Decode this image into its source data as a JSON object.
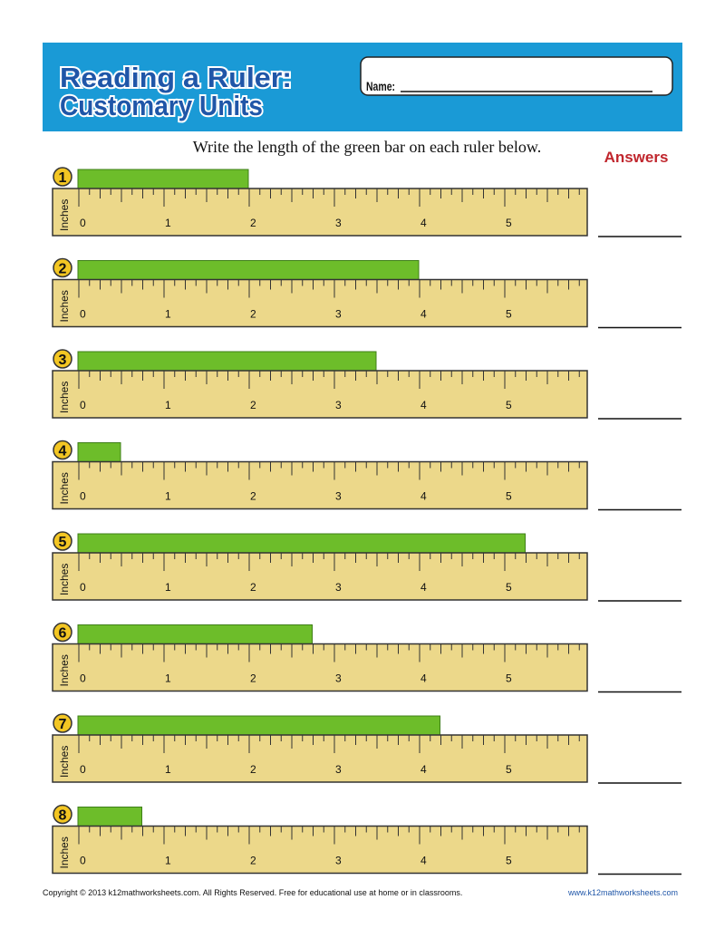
{
  "header": {
    "title_line1": "Reading a Ruler:",
    "title_line2": "Customary Units",
    "name_label": "Name:"
  },
  "instructions": "Write the length of the green bar on each ruler below.",
  "answers_label": "Answers",
  "ruler": {
    "unit_label": "Inches",
    "labels": [
      0,
      1,
      2,
      3,
      4,
      5
    ]
  },
  "problems": [
    {
      "number": 1,
      "bar_length": 2
    },
    {
      "number": 2,
      "bar_length": 4
    },
    {
      "number": 3,
      "bar_length": 3.5
    },
    {
      "number": 4,
      "bar_length": 0.5
    },
    {
      "number": 5,
      "bar_length": 5.25
    },
    {
      "number": 6,
      "bar_length": 2.75
    },
    {
      "number": 7,
      "bar_length": 4.25
    },
    {
      "number": 8,
      "bar_length": 0.75
    }
  ],
  "footer": {
    "copyright": "Copyright © 2013  k12mathworksheets.com. All Rights Reserved. Free for educational use at home or in classrooms.",
    "website": "www.k12mathworksheets.com"
  }
}
